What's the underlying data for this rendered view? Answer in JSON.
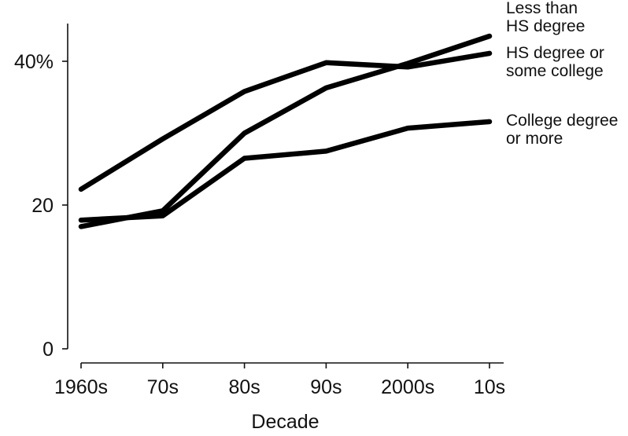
{
  "chart_data": {
    "type": "line",
    "title": "",
    "xlabel": "Decade",
    "ylabel": "",
    "categories": [
      "1960s",
      "70s",
      "80s",
      "90s",
      "2000s",
      "10s"
    ],
    "ylim": [
      0,
      44
    ],
    "yticks": [
      {
        "value": 0,
        "label": "0"
      },
      {
        "value": 20,
        "label": "20"
      },
      {
        "value": 40,
        "label": "40%"
      }
    ],
    "grid": false,
    "legend": "direct labels at right end of each line",
    "line_color": "#000000",
    "series": [
      {
        "name": "Less than HS degree",
        "label_lines": [
          "Less than",
          "HS degree"
        ],
        "values": [
          17.0,
          19.2,
          30.0,
          36.3,
          39.7,
          43.5
        ]
      },
      {
        "name": "HS degree or some college",
        "label_lines": [
          "HS degree or",
          "some college"
        ],
        "values": [
          22.2,
          29.2,
          35.8,
          39.8,
          39.2,
          41.1
        ]
      },
      {
        "name": "College degree or more",
        "label_lines": [
          "College degree",
          "or more"
        ],
        "values": [
          17.9,
          18.5,
          26.5,
          27.5,
          30.7,
          31.6
        ]
      }
    ]
  }
}
